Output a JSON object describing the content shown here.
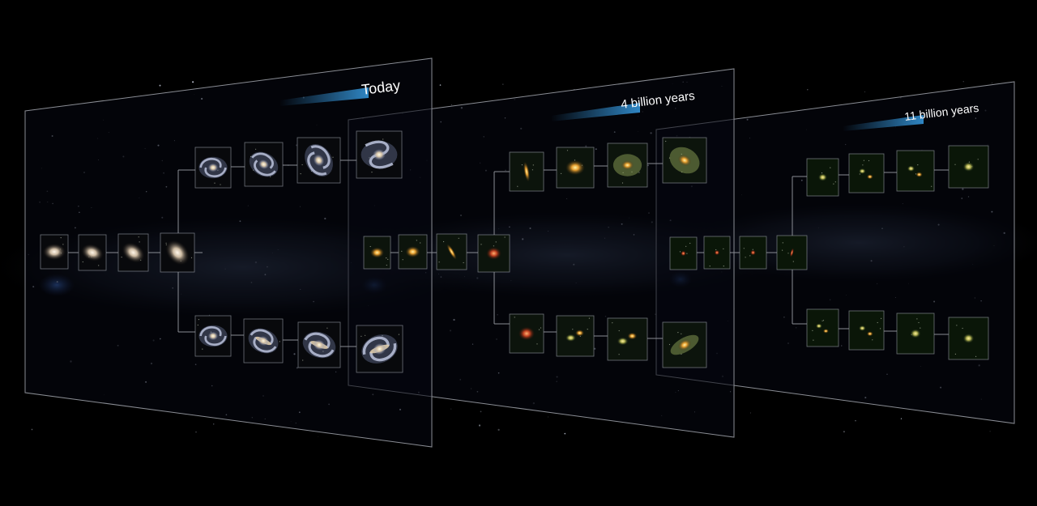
{
  "epochs": [
    {
      "label": "Today"
    },
    {
      "label": "4 billion years"
    },
    {
      "label": "11 billion years"
    }
  ],
  "colors": {
    "background": "#000000",
    "panel_border": "#8a8d94",
    "label_bar": "#2f86c4",
    "label_text": "#ffffff",
    "milky_way": "#3a4a66"
  }
}
